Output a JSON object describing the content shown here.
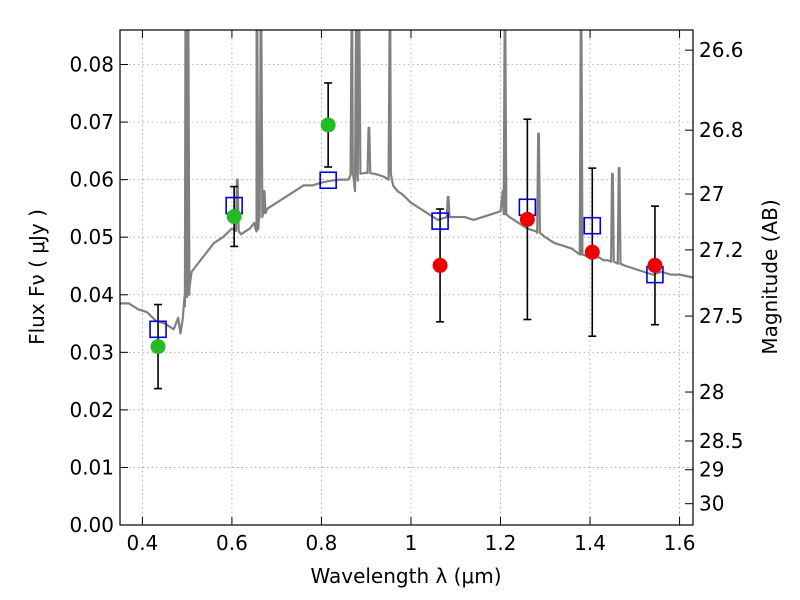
{
  "chart_data": {
    "type": "scatter",
    "title": "",
    "xlabel": "Wavelength  λ (μm)",
    "ylabel": "Flux  Fν  ( μJy )",
    "y2label": "Magnitude (AB)",
    "xlim": [
      0.35,
      1.63
    ],
    "ylim": [
      0.0,
      0.086
    ],
    "grid": true,
    "x_ticks": [
      0.4,
      0.6,
      0.8,
      1.0,
      1.2,
      1.4,
      1.6
    ],
    "x_tick_labels": [
      "0.4",
      "0.6",
      "0.8",
      "1",
      "1.2",
      "1.4",
      "1.6"
    ],
    "y_ticks": [
      0.0,
      0.01,
      0.02,
      0.03,
      0.04,
      0.05,
      0.06,
      0.07,
      0.08
    ],
    "y_tick_labels": [
      "0.00",
      "0.01",
      "0.02",
      "0.03",
      "0.04",
      "0.05",
      "0.06",
      "0.07",
      "0.08"
    ],
    "right_ticks": [
      {
        "label": "26.6",
        "flux": 0.0825
      },
      {
        "label": "26.8",
        "flux": 0.0686
      },
      {
        "label": "27",
        "flux": 0.0575
      },
      {
        "label": "27.2",
        "flux": 0.0478
      },
      {
        "label": "27.5",
        "flux": 0.0363
      },
      {
        "label": "28",
        "flux": 0.0231
      },
      {
        "label": "28.5",
        "flux": 0.0146
      },
      {
        "label": "29",
        "flux": 0.0096
      },
      {
        "label": "30",
        "flux": 0.0037
      }
    ],
    "colors": {
      "model": "#808080",
      "model_points": "#0000dd",
      "obs_green": "#22bb22",
      "obs_red": "#ee0000",
      "errorbar": "#000000",
      "grid": "#a0a0a0"
    },
    "series": [
      {
        "kind": "model_spectrum",
        "x": [
          0.35,
          0.37,
          0.39,
          0.41,
          0.43,
          0.45,
          0.47,
          0.48,
          0.485,
          0.49,
          0.495,
          0.5,
          0.505,
          0.51,
          0.52,
          0.53,
          0.54,
          0.56,
          0.58,
          0.6,
          0.615,
          0.62,
          0.63,
          0.64,
          0.645,
          0.65,
          0.655,
          0.66,
          0.67,
          0.68,
          0.7,
          0.72,
          0.74,
          0.76,
          0.78,
          0.8,
          0.82,
          0.84,
          0.86,
          0.87,
          0.875,
          0.88,
          0.9,
          0.92,
          0.94,
          0.95,
          0.955,
          0.96,
          0.97,
          0.98,
          1.0,
          1.02,
          1.04,
          1.06,
          1.08,
          1.1,
          1.12,
          1.14,
          1.16,
          1.18,
          1.2,
          1.205,
          1.21,
          1.22,
          1.24,
          1.26,
          1.28,
          1.3,
          1.32,
          1.34,
          1.36,
          1.38,
          1.4,
          1.42,
          1.43,
          1.44,
          1.46,
          1.48,
          1.5,
          1.52,
          1.54,
          1.56,
          1.58,
          1.6,
          1.63
        ],
        "y": [
          0.0385,
          0.0385,
          0.0375,
          0.037,
          0.0355,
          0.035,
          0.034,
          0.036,
          0.0333,
          0.0357,
          0.038,
          0.042,
          0.04,
          0.044,
          0.045,
          0.046,
          0.047,
          0.049,
          0.05,
          0.0515,
          0.051,
          0.0505,
          0.051,
          0.0515,
          0.052,
          0.0525,
          0.051,
          0.053,
          0.054,
          0.055,
          0.056,
          0.057,
          0.058,
          0.059,
          0.059,
          0.0595,
          0.0598,
          0.06,
          0.06,
          0.061,
          0.058,
          0.061,
          0.0612,
          0.061,
          0.0605,
          0.06,
          0.061,
          0.059,
          0.058,
          0.0575,
          0.056,
          0.055,
          0.054,
          0.053,
          0.0535,
          0.0535,
          0.0535,
          0.053,
          0.0535,
          0.054,
          0.0545,
          0.058,
          0.054,
          0.0535,
          0.0525,
          0.0515,
          0.051,
          0.05,
          0.049,
          0.0485,
          0.048,
          0.047,
          0.0465,
          0.0465,
          0.046,
          0.046,
          0.0455,
          0.045,
          0.0445,
          0.044,
          0.0435,
          0.044,
          0.0435,
          0.0435,
          0.043
        ],
        "emission_lines": [
          {
            "x": 0.497,
            "peak": 0.086
          },
          {
            "x": 0.502,
            "peak": 0.086
          },
          {
            "x": 0.612,
            "peak": 0.06
          },
          {
            "x": 0.656,
            "peak": 0.086
          },
          {
            "x": 0.665,
            "peak": 0.086
          },
          {
            "x": 0.672,
            "peak": 0.058
          },
          {
            "x": 0.868,
            "peak": 0.086
          },
          {
            "x": 0.878,
            "peak": 0.086
          },
          {
            "x": 0.884,
            "peak": 0.086
          },
          {
            "x": 0.906,
            "peak": 0.069
          },
          {
            "x": 0.953,
            "peak": 0.086
          },
          {
            "x": 1.083,
            "peak": 0.057
          },
          {
            "x": 1.21,
            "peak": 0.086
          },
          {
            "x": 1.285,
            "peak": 0.068
          },
          {
            "x": 1.38,
            "peak": 0.086
          },
          {
            "x": 1.45,
            "peak": 0.061
          },
          {
            "x": 1.465,
            "peak": 0.062
          }
        ]
      },
      {
        "kind": "model_photometry",
        "marker": "open-square",
        "x": [
          0.435,
          0.605,
          0.815,
          1.065,
          1.26,
          1.405,
          1.545
        ],
        "y": [
          0.034,
          0.0555,
          0.0599,
          0.0528,
          0.0552,
          0.052,
          0.0435
        ]
      },
      {
        "kind": "observed_photometry",
        "marker": "filled-circle",
        "x": [
          0.435,
          0.605,
          0.815,
          1.065,
          1.26,
          1.405,
          1.545
        ],
        "y": [
          0.031,
          0.0536,
          0.0695,
          0.0451,
          0.0531,
          0.0474,
          0.0451
        ],
        "yerr": [
          0.0073,
          0.0052,
          0.0073,
          0.0098,
          0.0174,
          0.0146,
          0.0103
        ],
        "color_keys": [
          "obs_green",
          "obs_green",
          "obs_green",
          "obs_red",
          "obs_red",
          "obs_red",
          "obs_red"
        ]
      }
    ]
  }
}
